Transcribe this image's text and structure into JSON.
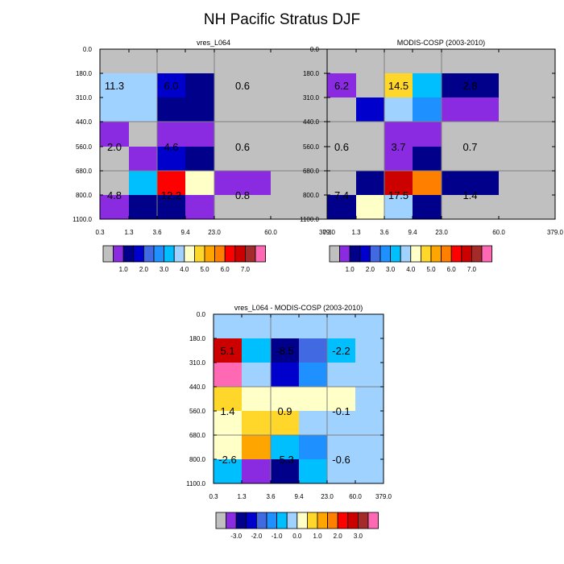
{
  "figure_title": "NH Pacific Stratus DJF",
  "colors": {
    "cat": [
      "#c0c0c0",
      "#8a2be2",
      "#00008b",
      "#0000cd",
      "#4169e1",
      "#1e90ff",
      "#00bfff",
      "#a0d2ff",
      "#ffffc8",
      "#ffd72a",
      "#ffa500",
      "#ff7f00",
      "#ff0000",
      "#cd0000",
      "#a52a2a",
      "#ff69b4"
    ],
    "grid_line": "#808080"
  },
  "chart_data": [
    {
      "type": "heatmap",
      "id": "p1",
      "title": "vres_L064",
      "x_ticks": [
        "0.3",
        "1.3",
        "3.6",
        "9.4",
        "23.0",
        "60.0",
        "379.0"
      ],
      "y_ticks": [
        "0.0",
        "180.0",
        "310.0",
        "440.0",
        "560.0",
        "680.0",
        "800.0",
        "1100.0"
      ],
      "cells": [
        [
          0,
          0,
          0,
          0,
          0,
          0
        ],
        [
          7,
          7,
          3,
          2,
          0,
          0
        ],
        [
          7,
          7,
          2,
          2,
          0,
          0
        ],
        [
          1,
          0,
          1,
          1,
          0,
          0
        ],
        [
          0,
          1,
          3,
          2,
          0,
          0
        ],
        [
          0,
          6,
          12,
          8,
          1,
          0
        ],
        [
          1,
          2,
          2,
          1,
          0,
          0
        ]
      ],
      "labels": [
        {
          "value": "11.3",
          "col": 0.5,
          "row": 1.5
        },
        {
          "value": "6.0",
          "col": 2.5,
          "row": 1.5
        },
        {
          "value": "0.6",
          "col": 4.5,
          "row": 1.5
        },
        {
          "value": "2.0",
          "col": 0.5,
          "row": 4.0
        },
        {
          "value": "4.6",
          "col": 2.5,
          "row": 4.0
        },
        {
          "value": "0.6",
          "col": 4.5,
          "row": 4.0
        },
        {
          "value": "4.8",
          "col": 0.5,
          "row": 6.0
        },
        {
          "value": "12.2",
          "col": 2.5,
          "row": 6.0
        },
        {
          "value": "0.8",
          "col": 4.5,
          "row": 6.0
        }
      ],
      "colorbar_labels": [
        "1.0",
        "2.0",
        "3.0",
        "4.0",
        "5.0",
        "6.0",
        "7.0"
      ]
    },
    {
      "type": "heatmap",
      "id": "p2",
      "title": "MODIS-COSP (2003-2010)",
      "x_ticks": [
        "0.3",
        "1.3",
        "3.6",
        "9.4",
        "23.0",
        "60.0",
        "379.0"
      ],
      "y_ticks": [
        "0.0",
        "180.0",
        "310.0",
        "440.0",
        "560.0",
        "680.0",
        "800.0",
        "1100.0"
      ],
      "cells": [
        [
          0,
          0,
          0,
          0,
          0,
          0
        ],
        [
          1,
          0,
          9,
          6,
          2,
          0
        ],
        [
          0,
          3,
          7,
          5,
          1,
          0
        ],
        [
          0,
          0,
          1,
          1,
          0,
          0
        ],
        [
          0,
          0,
          1,
          2,
          0,
          0
        ],
        [
          0,
          2,
          13,
          11,
          2,
          0
        ],
        [
          2,
          8,
          7,
          2,
          0,
          0
        ]
      ],
      "labels": [
        {
          "value": "6.2",
          "col": 0.5,
          "row": 1.5
        },
        {
          "value": "14.5",
          "col": 2.5,
          "row": 1.5
        },
        {
          "value": "2.8",
          "col": 4.5,
          "row": 1.5
        },
        {
          "value": "0.6",
          "col": 0.5,
          "row": 4.0
        },
        {
          "value": "3.7",
          "col": 2.5,
          "row": 4.0
        },
        {
          "value": "0.7",
          "col": 4.5,
          "row": 4.0
        },
        {
          "value": "7.4",
          "col": 0.5,
          "row": 6.0
        },
        {
          "value": "17.5",
          "col": 2.5,
          "row": 6.0
        },
        {
          "value": "1.4",
          "col": 4.5,
          "row": 6.0
        }
      ],
      "colorbar_labels": [
        "1.0",
        "2.0",
        "3.0",
        "4.0",
        "5.0",
        "6.0",
        "7.0"
      ]
    },
    {
      "type": "heatmap",
      "id": "p3",
      "title": "vres_L064 - MODIS-COSP (2003-2010)",
      "x_ticks": [
        "0.3",
        "1.3",
        "3.6",
        "9.4",
        "23.0",
        "60.0",
        "379.0"
      ],
      "y_ticks": [
        "0.0",
        "180.0",
        "310.0",
        "440.0",
        "560.0",
        "680.0",
        "800.0",
        "1100.0"
      ],
      "cells": [
        [
          7,
          7,
          7,
          7,
          7,
          7
        ],
        [
          13,
          6,
          2,
          4,
          6,
          7
        ],
        [
          15,
          7,
          3,
          5,
          7,
          7
        ],
        [
          9,
          8,
          8,
          8,
          8,
          7
        ],
        [
          8,
          9,
          9,
          7,
          7,
          7
        ],
        [
          8,
          10,
          6,
          5,
          7,
          7
        ],
        [
          6,
          1,
          2,
          6,
          7,
          7
        ]
      ],
      "labels": [
        {
          "value": "5.1",
          "col": 0.5,
          "row": 1.5
        },
        {
          "value": "-8.5",
          "col": 2.5,
          "row": 1.5
        },
        {
          "value": "-2.2",
          "col": 4.5,
          "row": 1.5
        },
        {
          "value": "1.4",
          "col": 0.5,
          "row": 4.0
        },
        {
          "value": "0.9",
          "col": 2.5,
          "row": 4.0
        },
        {
          "value": "-0.1",
          "col": 4.5,
          "row": 4.0
        },
        {
          "value": "-2.6",
          "col": 0.5,
          "row": 6.0
        },
        {
          "value": "-5.3",
          "col": 2.5,
          "row": 6.0
        },
        {
          "value": "-0.6",
          "col": 4.5,
          "row": 6.0
        }
      ],
      "colorbar_labels": [
        "-3.0",
        "-2.0",
        "-1.0",
        "0.0",
        "1.0",
        "2.0",
        "3.0"
      ]
    }
  ]
}
